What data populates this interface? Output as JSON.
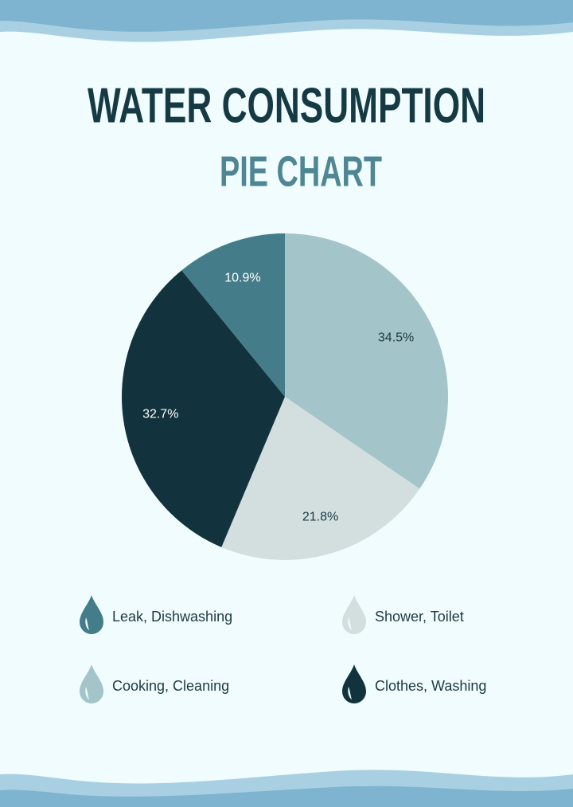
{
  "chart_data": {
    "type": "pie",
    "title": "WATER CONSUMPTION",
    "subtitle": "PIE CHART",
    "categories": [
      "Cooking, Cleaning",
      "Shower, Toilet",
      "Clothes, Washing",
      "Leak, Dishwashing"
    ],
    "values": [
      34.5,
      21.8,
      32.7,
      10.9
    ],
    "value_labels": [
      "34.5%",
      "21.8%",
      "32.7%",
      "10.9%"
    ],
    "colors": [
      "#a3c4c9",
      "#d3dfdf",
      "#12333d",
      "#447c89"
    ]
  }
}
